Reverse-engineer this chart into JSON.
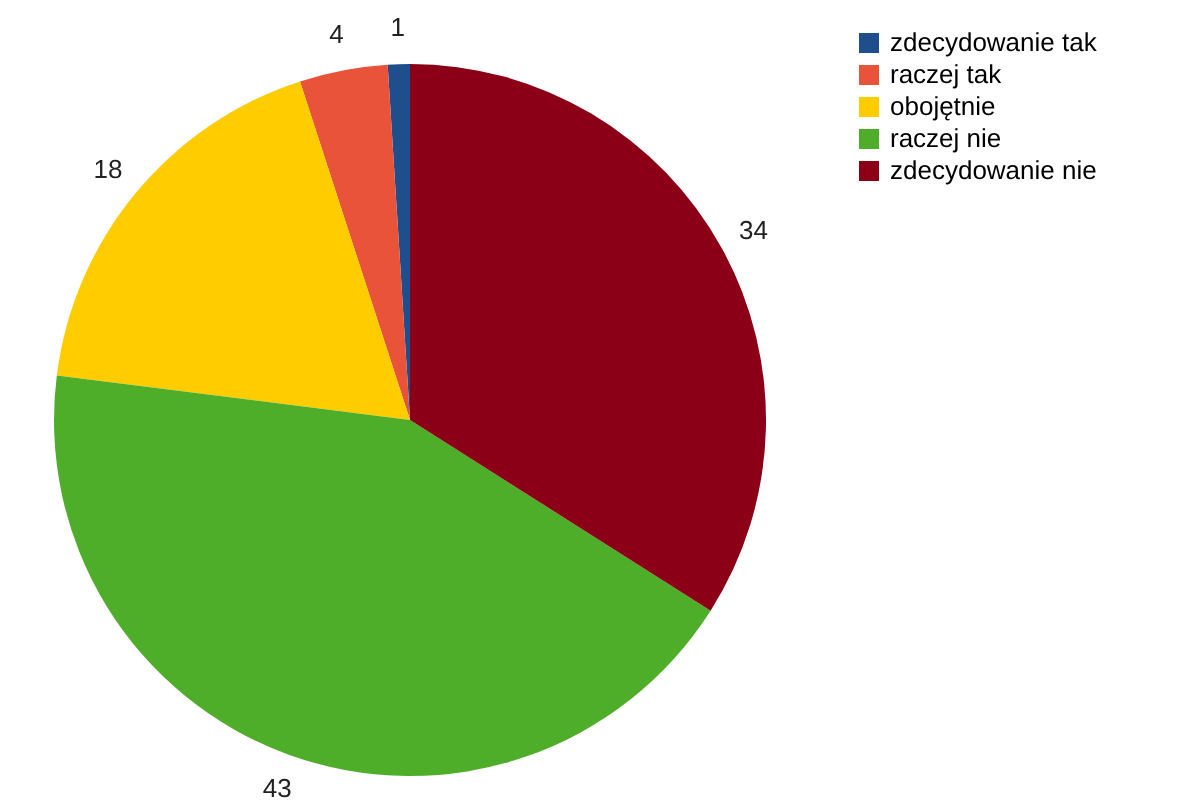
{
  "chart_data": {
    "type": "pie",
    "categories": [
      "zdecydowanie tak",
      "raczej tak",
      "obojętnie",
      "raczej nie",
      "zdecydowanie nie"
    ],
    "values": [
      1,
      4,
      18,
      43,
      34
    ],
    "colors": [
      "#1f4e8c",
      "#e8533a",
      "#ffcc00",
      "#4eae2a",
      "#8b0016"
    ],
    "data_labels": true,
    "legend": "right"
  }
}
